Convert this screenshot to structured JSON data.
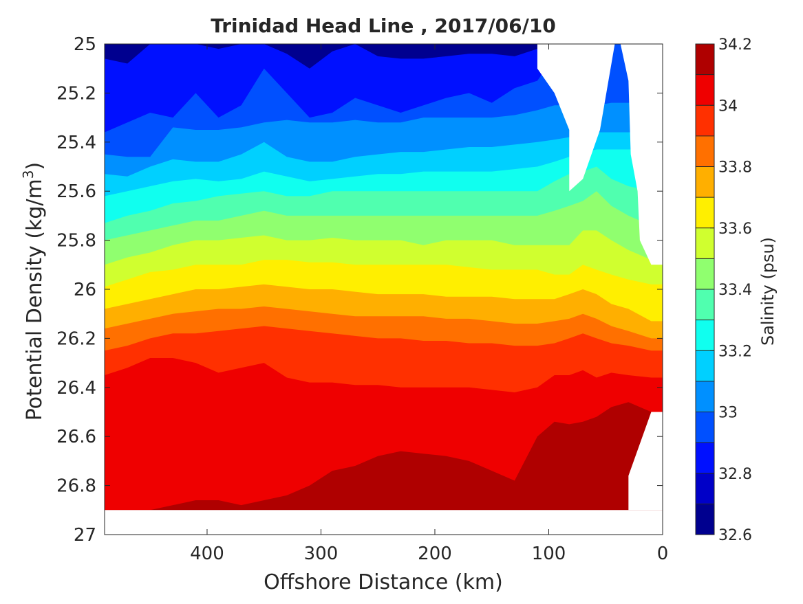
{
  "chart_data": {
    "type": "heatmap",
    "subtype": "filled-contour",
    "title": "Trinidad Head Line , 2017/06/10",
    "xlabel": "Offshore Distance (km)",
    "ylabel_main": "Potential Density (kg/m",
    "ylabel_sup": "3",
    "ylabel_close": ")",
    "xlim": [
      490,
      0
    ],
    "ylim": [
      25,
      27
    ],
    "x_reversed": true,
    "y_reversed": true,
    "x_ticks": [
      400,
      300,
      200,
      100,
      0
    ],
    "x_tick_labels": [
      "400",
      "300",
      "200",
      "100",
      "0"
    ],
    "y_ticks": [
      25,
      25.2,
      25.4,
      25.6,
      25.8,
      26,
      26.2,
      26.4,
      26.6,
      26.8,
      27
    ],
    "y_tick_labels": [
      "25",
      "25.2",
      "25.4",
      "25.6",
      "25.8",
      "26",
      "26.2",
      "26.4",
      "26.6",
      "26.8",
      "27"
    ],
    "grid": false,
    "colormap": "jet",
    "colorbar": {
      "label": "Salinity (psu)",
      "range": [
        32.6,
        34.2
      ],
      "ticks": [
        32.6,
        32.8,
        33,
        33.2,
        33.4,
        33.6,
        33.8,
        34,
        34.2
      ],
      "tick_labels": [
        "32.6",
        "32.8",
        "33",
        "33.2",
        "33.4",
        "33.6",
        "33.8",
        "34",
        "34.2"
      ],
      "levels": [
        32.6,
        32.7,
        32.8,
        32.9,
        33.0,
        33.1,
        33.2,
        33.3,
        33.4,
        33.5,
        33.6,
        33.7,
        33.8,
        33.9,
        34.0,
        34.1,
        34.2
      ],
      "colors": [
        "#00008f",
        "#0000c8",
        "#0010ff",
        "#0050ff",
        "#0090ff",
        "#00d0ff",
        "#10ffef",
        "#50ffaf",
        "#90ff6f",
        "#d0ff2f",
        "#ffef00",
        "#ffaf00",
        "#ff7000",
        "#ff3000",
        "#ef0000",
        "#af0000"
      ]
    },
    "stations_x": [
      490,
      470,
      450,
      430,
      410,
      390,
      370,
      350,
      330,
      310,
      290,
      270,
      250,
      230,
      210,
      190,
      170,
      150,
      130,
      110,
      95,
      82,
      70,
      58,
      45,
      30,
      10
    ],
    "salinity_isolines": {
      "32.8": [
        25.06,
        25.08,
        25.0,
        25.0,
        25.0,
        25.02,
        25.0,
        25.0,
        25.04,
        25.1,
        25.03,
        25.0,
        25.05,
        25.06,
        25.06,
        25.05,
        25.04,
        25.04,
        25.05,
        25.02,
        25.0,
        25.0,
        25.0,
        25.0,
        25.0,
        25.0,
        25.0
      ],
      "32.9": [
        25.36,
        25.32,
        25.28,
        25.3,
        25.2,
        25.3,
        25.25,
        25.1,
        25.2,
        25.3,
        25.28,
        25.22,
        25.25,
        25.28,
        25.25,
        25.22,
        25.2,
        25.24,
        25.18,
        25.15,
        25.05,
        25.0,
        25.0,
        25.0,
        25.0,
        25.0,
        25.0
      ],
      "33.0": [
        25.45,
        25.46,
        25.46,
        25.34,
        25.35,
        25.35,
        25.34,
        25.32,
        25.31,
        25.32,
        25.32,
        25.31,
        25.32,
        25.32,
        25.3,
        25.3,
        25.3,
        25.3,
        25.29,
        25.27,
        25.25,
        25.25,
        25.25,
        25.25,
        25.24,
        25.24,
        25.24
      ],
      "33.1": [
        25.53,
        25.54,
        25.5,
        25.47,
        25.48,
        25.48,
        25.45,
        25.4,
        25.46,
        25.48,
        25.48,
        25.46,
        25.45,
        25.44,
        25.44,
        25.43,
        25.42,
        25.42,
        25.41,
        25.4,
        25.39,
        25.38,
        25.37,
        25.36,
        25.36,
        25.36,
        25.36
      ],
      "33.2": [
        25.62,
        25.6,
        25.58,
        25.56,
        25.55,
        25.56,
        25.55,
        25.52,
        25.54,
        25.56,
        25.55,
        25.54,
        25.53,
        25.53,
        25.52,
        25.52,
        25.52,
        25.52,
        25.51,
        25.5,
        25.48,
        25.46,
        25.44,
        25.43,
        25.43,
        25.43,
        25.43
      ],
      "33.3": [
        25.73,
        25.7,
        25.68,
        25.65,
        25.64,
        25.62,
        25.61,
        25.6,
        25.62,
        25.62,
        25.6,
        25.6,
        25.6,
        25.6,
        25.6,
        25.6,
        25.6,
        25.6,
        25.6,
        25.6,
        25.56,
        25.53,
        25.52,
        25.5,
        25.55,
        25.58,
        25.6
      ],
      "33.4": [
        25.8,
        25.78,
        25.76,
        25.74,
        25.72,
        25.72,
        25.7,
        25.68,
        25.7,
        25.7,
        25.7,
        25.7,
        25.7,
        25.7,
        25.7,
        25.7,
        25.7,
        25.7,
        25.7,
        25.7,
        25.68,
        25.66,
        25.64,
        25.6,
        25.66,
        25.7,
        25.74
      ],
      "33.5": [
        25.9,
        25.87,
        25.85,
        25.82,
        25.8,
        25.8,
        25.79,
        25.78,
        25.8,
        25.8,
        25.79,
        25.8,
        25.8,
        25.8,
        25.82,
        25.8,
        25.8,
        25.8,
        25.82,
        25.82,
        25.82,
        25.82,
        25.76,
        25.76,
        25.8,
        25.84,
        25.88
      ],
      "33.6": [
        25.99,
        25.96,
        25.93,
        25.92,
        25.9,
        25.9,
        25.9,
        25.88,
        25.88,
        25.89,
        25.89,
        25.9,
        25.9,
        25.9,
        25.9,
        25.9,
        25.91,
        25.92,
        25.92,
        25.92,
        25.94,
        25.94,
        25.9,
        25.92,
        25.94,
        25.96,
        25.98
      ],
      "33.7": [
        26.08,
        26.06,
        26.04,
        26.02,
        26.0,
        26.0,
        25.99,
        25.98,
        25.99,
        26.0,
        26.0,
        26.01,
        26.02,
        26.02,
        26.02,
        26.03,
        26.03,
        26.03,
        26.04,
        26.04,
        26.04,
        26.02,
        26.0,
        26.02,
        26.06,
        26.08,
        26.13
      ],
      "33.8": [
        26.16,
        26.14,
        26.12,
        26.1,
        26.09,
        26.08,
        26.08,
        26.07,
        26.08,
        26.09,
        26.1,
        26.11,
        26.11,
        26.11,
        26.11,
        26.12,
        26.12,
        26.13,
        26.14,
        26.14,
        26.13,
        26.12,
        26.1,
        26.12,
        26.15,
        26.17,
        26.2
      ],
      "33.9": [
        26.25,
        26.23,
        26.2,
        26.18,
        26.18,
        26.17,
        26.16,
        26.15,
        26.16,
        26.17,
        26.18,
        26.19,
        26.2,
        26.2,
        26.21,
        26.21,
        26.22,
        26.22,
        26.23,
        26.23,
        26.22,
        26.2,
        26.18,
        26.2,
        26.22,
        26.23,
        26.25
      ],
      "34.0": [
        26.35,
        26.32,
        26.28,
        26.28,
        26.3,
        26.34,
        26.32,
        26.3,
        26.36,
        26.38,
        26.38,
        26.39,
        26.39,
        26.4,
        26.4,
        26.4,
        26.4,
        26.41,
        26.42,
        26.4,
        26.35,
        26.35,
        26.33,
        26.36,
        26.34,
        26.35,
        26.36
      ],
      "34.1": [
        26.9,
        26.9,
        26.9,
        26.88,
        26.86,
        26.86,
        26.88,
        26.86,
        26.84,
        26.8,
        26.74,
        26.72,
        26.68,
        26.66,
        26.67,
        26.68,
        26.7,
        26.74,
        26.78,
        26.6,
        26.54,
        26.55,
        26.54,
        26.52,
        26.48,
        26.46,
        26.5
      ],
      "34.2": [
        26.9,
        26.9,
        26.9,
        26.9,
        26.9,
        26.9,
        26.9,
        26.9,
        26.9,
        26.9,
        26.9,
        26.9,
        26.9,
        26.9,
        26.9,
        26.9,
        26.9,
        26.9,
        26.9,
        26.78,
        26.74,
        26.74,
        26.75,
        26.76,
        26.75,
        26.74,
        26.74
      ]
    },
    "no_data_regions": [
      [
        [
          110,
          25.0
        ],
        [
          110,
          25.1
        ],
        [
          95,
          25.2
        ],
        [
          82,
          25.35
        ],
        [
          82,
          25.6
        ],
        [
          70,
          25.55
        ],
        [
          55,
          25.35
        ],
        [
          42,
          25.0
        ]
      ],
      [
        [
          37,
          25.0
        ],
        [
          30,
          25.15
        ],
        [
          28,
          25.45
        ],
        [
          22,
          25.6
        ],
        [
          20,
          25.8
        ],
        [
          10,
          25.9
        ],
        [
          0,
          25.9
        ],
        [
          0,
          25.0
        ]
      ],
      [
        [
          490,
          26.9
        ],
        [
          0,
          26.9
        ],
        [
          0,
          27.0
        ],
        [
          490,
          27.0
        ]
      ],
      [
        [
          30,
          26.9
        ],
        [
          30,
          26.76
        ],
        [
          10,
          26.5
        ],
        [
          0,
          26.5
        ],
        [
          0,
          26.9
        ]
      ]
    ],
    "high_salinity_region": [
      [
        115,
        26.9
      ],
      [
        95,
        26.8
      ],
      [
        80,
        26.76
      ],
      [
        60,
        26.76
      ],
      [
        45,
        26.73
      ],
      [
        30,
        26.68
      ],
      [
        30,
        26.9
      ],
      [
        50,
        26.9
      ],
      [
        60,
        27.0
      ],
      [
        70,
        27.0
      ],
      [
        80,
        26.9
      ]
    ]
  }
}
